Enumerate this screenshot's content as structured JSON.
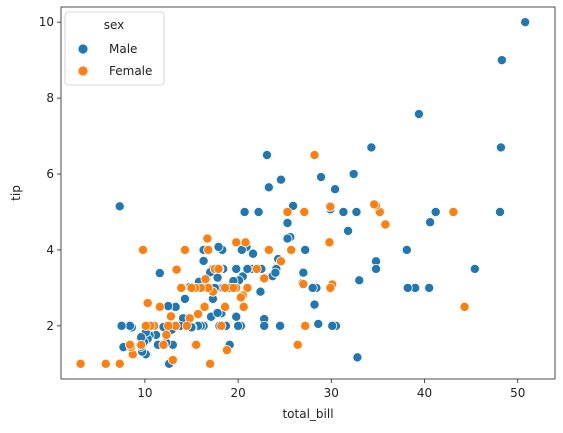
{
  "chart_data": {
    "type": "scatter",
    "xlabel": "total_bill",
    "ylabel": "tip",
    "xlim": [
      1,
      54
    ],
    "ylim": [
      0.6,
      10.4
    ],
    "x_ticks": [
      10,
      20,
      30,
      40,
      50
    ],
    "y_ticks": [
      2,
      4,
      6,
      8,
      10
    ],
    "grid": false,
    "legend": {
      "title": "sex",
      "placement": "top-left"
    },
    "series": [
      {
        "name": "Male",
        "color": "#1f77b4",
        "points": [
          [
            50.8,
            10.0
          ],
          [
            48.3,
            9.0
          ],
          [
            48.2,
            6.7
          ],
          [
            48.1,
            5.0
          ],
          [
            45.4,
            3.5
          ],
          [
            41.2,
            5.0
          ],
          [
            40.6,
            4.73
          ],
          [
            39.4,
            7.58
          ],
          [
            40.5,
            3.0
          ],
          [
            39.0,
            3.0
          ],
          [
            38.2,
            3.0
          ],
          [
            38.1,
            4.0
          ],
          [
            34.8,
            3.7
          ],
          [
            34.8,
            3.5
          ],
          [
            34.3,
            6.7
          ],
          [
            33.0,
            3.2
          ],
          [
            32.8,
            1.17
          ],
          [
            32.7,
            5.0
          ],
          [
            32.4,
            6.0
          ],
          [
            31.8,
            4.5
          ],
          [
            31.3,
            5.0
          ],
          [
            30.4,
            5.6
          ],
          [
            30.5,
            2.0
          ],
          [
            30.1,
            2.0
          ],
          [
            29.9,
            5.07
          ],
          [
            29.8,
            5.14
          ],
          [
            28.9,
            5.92
          ],
          [
            28.4,
            3.0
          ],
          [
            28.6,
            2.05
          ],
          [
            28.2,
            2.56
          ],
          [
            28.0,
            3.0
          ],
          [
            27.2,
            4.0
          ],
          [
            27.0,
            3.4
          ],
          [
            26.9,
            3.12
          ],
          [
            25.9,
            5.16
          ],
          [
            25.6,
            4.34
          ],
          [
            25.3,
            4.71
          ],
          [
            25.3,
            4.3
          ],
          [
            24.6,
            5.85
          ],
          [
            24.3,
            3.76
          ],
          [
            24.1,
            3.5
          ],
          [
            23.7,
            3.31
          ],
          [
            23.3,
            5.65
          ],
          [
            23.1,
            6.5
          ],
          [
            22.8,
            2.18
          ],
          [
            22.8,
            2.0
          ],
          [
            24.6,
            2.0
          ],
          [
            24.5,
            2.0
          ],
          [
            24.0,
            3.4
          ],
          [
            22.5,
            3.5
          ],
          [
            22.2,
            5.0
          ],
          [
            21.6,
            3.9
          ],
          [
            21.5,
            3.5
          ],
          [
            21.0,
            3.0
          ],
          [
            20.9,
            4.08
          ],
          [
            20.7,
            5.0
          ],
          [
            20.5,
            3.3
          ],
          [
            20.3,
            2.0
          ],
          [
            20.0,
            2.0
          ],
          [
            20.1,
            3.2
          ],
          [
            20.4,
            4.0
          ],
          [
            19.8,
            3.5
          ],
          [
            19.5,
            3.18
          ],
          [
            19.4,
            3.0
          ],
          [
            19.1,
            1.5
          ],
          [
            19.8,
            2.24
          ],
          [
            18.7,
            2.0
          ],
          [
            18.8,
            3.0
          ],
          [
            18.4,
            3.5
          ],
          [
            18.3,
            4.0
          ],
          [
            18.2,
            3.0
          ],
          [
            18.2,
            2.33
          ],
          [
            18.0,
            2.0
          ],
          [
            17.9,
            4.08
          ],
          [
            17.8,
            3.27
          ],
          [
            17.3,
            3.5
          ],
          [
            17.3,
            2.71
          ],
          [
            17.0,
            3.41
          ],
          [
            16.9,
            3.0
          ],
          [
            16.6,
            3.0
          ],
          [
            16.3,
            4.0
          ],
          [
            16.3,
            2.0
          ],
          [
            16.3,
            3.71
          ],
          [
            16.0,
            2.0
          ],
          [
            15.8,
            3.16
          ],
          [
            15.7,
            2.0
          ],
          [
            15.5,
            3.0
          ],
          [
            15.4,
            1.5
          ],
          [
            15.1,
            1.96
          ],
          [
            15.0,
            3.0
          ],
          [
            14.8,
            3.02
          ],
          [
            14.5,
            2.0
          ],
          [
            14.3,
            2.71
          ],
          [
            14.1,
            2.2
          ],
          [
            14.0,
            3.0
          ],
          [
            13.8,
            2.0
          ],
          [
            13.4,
            3.48
          ],
          [
            13.3,
            2.5
          ],
          [
            13.0,
            2.0
          ],
          [
            13.0,
            1.5
          ],
          [
            12.7,
            2.0
          ],
          [
            12.6,
            1.0
          ],
          [
            12.5,
            2.52
          ],
          [
            12.3,
            1.56
          ],
          [
            12.0,
            1.97
          ],
          [
            11.6,
            3.39
          ],
          [
            11.6,
            1.5
          ],
          [
            11.4,
            1.5
          ],
          [
            11.2,
            1.76
          ],
          [
            11.0,
            2.0
          ],
          [
            10.7,
            2.0
          ],
          [
            10.5,
            1.75
          ],
          [
            10.3,
            1.66
          ],
          [
            10.3,
            2.0
          ],
          [
            10.1,
            1.25
          ],
          [
            10.1,
            1.83
          ],
          [
            9.9,
            1.58
          ],
          [
            9.7,
            1.32
          ],
          [
            9.6,
            1.45
          ],
          [
            9.5,
            1.5
          ],
          [
            9.6,
            1.7
          ],
          [
            8.6,
            1.96
          ],
          [
            8.5,
            1.5
          ],
          [
            8.4,
            2.0
          ],
          [
            8.0,
            1.45
          ],
          [
            7.7,
            1.44
          ],
          [
            7.5,
            2.0
          ],
          [
            7.3,
            5.15
          ],
          [
            12.9,
            1.9
          ],
          [
            14.7,
            2.0
          ],
          [
            15.0,
            1.96
          ],
          [
            17.1,
            2.24
          ],
          [
            17.8,
            2.34
          ],
          [
            19.1,
            3.0
          ],
          [
            21.0,
            3.5
          ],
          [
            26.4,
            1.5
          ],
          [
            22.4,
            2.9
          ],
          [
            16.8,
            4.0
          ],
          [
            13.9,
            3.0
          ],
          [
            18.4,
            3.0
          ],
          [
            17.5,
            3.0
          ]
        ]
      },
      {
        "name": "Female",
        "color": "#ff7f0e",
        "points": [
          [
            44.3,
            2.5
          ],
          [
            43.1,
            5.0
          ],
          [
            35.8,
            4.67
          ],
          [
            35.2,
            5.0
          ],
          [
            34.8,
            5.17
          ],
          [
            34.6,
            5.2
          ],
          [
            30.1,
            3.09
          ],
          [
            29.9,
            5.14
          ],
          [
            29.8,
            4.2
          ],
          [
            29.9,
            3.0
          ],
          [
            28.2,
            6.5
          ],
          [
            27.1,
            5.0
          ],
          [
            27.2,
            2.0
          ],
          [
            27.0,
            3.1
          ],
          [
            26.4,
            1.5
          ],
          [
            25.7,
            4.0
          ],
          [
            25.3,
            5.0
          ],
          [
            24.6,
            3.7
          ],
          [
            23.3,
            4.0
          ],
          [
            22.8,
            3.25
          ],
          [
            22.0,
            3.5
          ],
          [
            21.0,
            3.0
          ],
          [
            20.8,
            4.2
          ],
          [
            20.5,
            2.8
          ],
          [
            20.6,
            2.5
          ],
          [
            20.3,
            2.75
          ],
          [
            19.8,
            3.0
          ],
          [
            19.8,
            4.2
          ],
          [
            19.5,
            3.0
          ],
          [
            18.8,
            1.36
          ],
          [
            18.6,
            3.0
          ],
          [
            18.0,
            3.5
          ],
          [
            18.2,
            2.0
          ],
          [
            17.5,
            3.5
          ],
          [
            17.3,
            2.9
          ],
          [
            17.0,
            1.0
          ],
          [
            16.8,
            3.0
          ],
          [
            16.7,
            4.3
          ],
          [
            16.5,
            3.23
          ],
          [
            16.4,
            2.5
          ],
          [
            16.0,
            3.0
          ],
          [
            15.7,
            2.31
          ],
          [
            15.4,
            3.0
          ],
          [
            15.0,
            3.0
          ],
          [
            14.8,
            2.2
          ],
          [
            14.3,
            4.0
          ],
          [
            14.5,
            2.0
          ],
          [
            13.9,
            3.0
          ],
          [
            13.4,
            3.48
          ],
          [
            13.3,
            2.0
          ],
          [
            13.0,
            1.1
          ],
          [
            12.8,
            2.25
          ],
          [
            12.5,
            2.0
          ],
          [
            12.3,
            1.76
          ],
          [
            12.0,
            1.5
          ],
          [
            11.6,
            2.5
          ],
          [
            11.0,
            2.0
          ],
          [
            10.6,
            2.0
          ],
          [
            10.3,
            2.6
          ],
          [
            10.1,
            2.0
          ],
          [
            9.8,
            4.0
          ],
          [
            9.6,
            1.5
          ],
          [
            8.7,
            1.25
          ],
          [
            8.5,
            1.44
          ],
          [
            8.4,
            1.5
          ],
          [
            7.3,
            1.0
          ],
          [
            5.8,
            1.0
          ],
          [
            3.1,
            1.0
          ],
          [
            15.5,
            1.5
          ],
          [
            18.6,
            2.5
          ],
          [
            16.8,
            4.0
          ],
          [
            17.9,
            3.5
          ]
        ]
      }
    ]
  }
}
